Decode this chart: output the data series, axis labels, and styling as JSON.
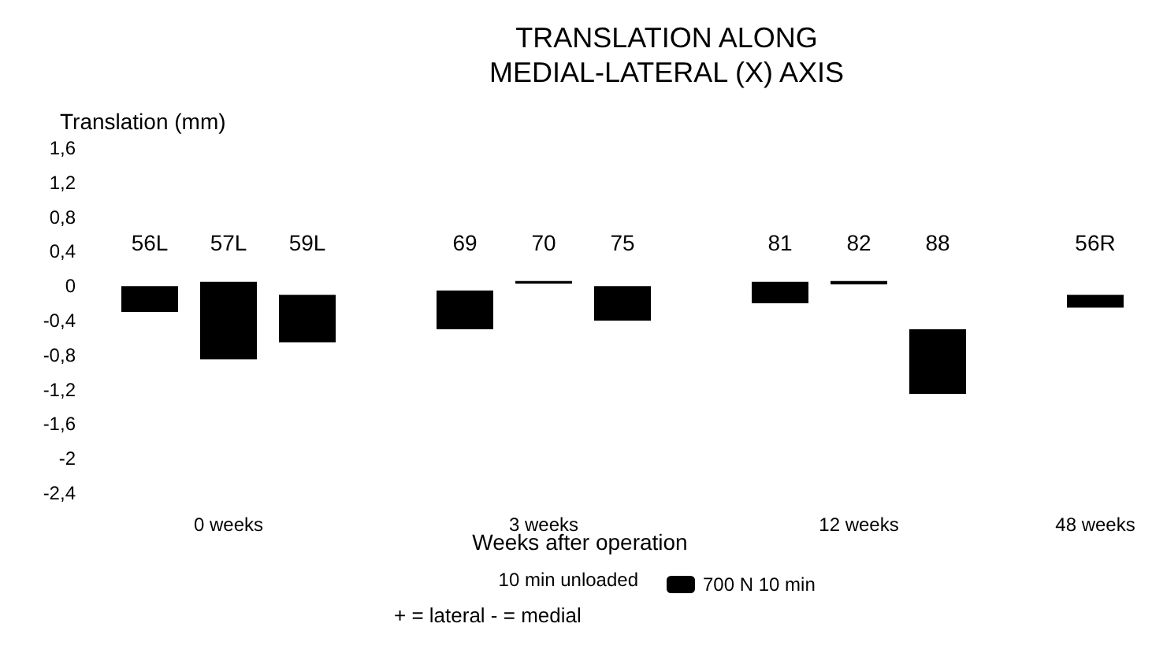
{
  "chart_data": {
    "type": "bar",
    "title": "TRANSLATION ALONG\nMEDIAL-LATERAL (X) AXIS",
    "ylabel": "Translation (mm)",
    "xlabel": "Weeks after operation",
    "categories": [
      "56L",
      "57L",
      "59L",
      null,
      "69",
      "70",
      "75",
      null,
      "81",
      "82",
      "88",
      null,
      "56R"
    ],
    "series": [
      {
        "name": "700 N 10 min",
        "color": "#000000",
        "values": [
          0.3,
          0.9,
          0.55,
          null,
          0.45,
          0.03,
          0.4,
          null,
          0.25,
          0.04,
          0.75,
          null,
          0.15
        ],
        "base": [
          -0.3,
          -0.85,
          -0.65,
          null,
          -0.5,
          0.03,
          -0.4,
          null,
          -0.2,
          0.02,
          -1.25,
          null,
          -0.25
        ]
      }
    ],
    "ylim": [
      -2.4,
      1.6
    ],
    "yticks": [
      {
        "value": 1.6,
        "label": "1,6"
      },
      {
        "value": 1.2,
        "label": "1,2"
      },
      {
        "value": 0.8,
        "label": "0,8"
      },
      {
        "value": 0.4,
        "label": "0,4"
      },
      {
        "value": 0,
        "label": "0"
      },
      {
        "value": -0.4,
        "label": "-0,4"
      },
      {
        "value": -0.8,
        "label": "-0,8"
      },
      {
        "value": -1.2,
        "label": "-1,2"
      },
      {
        "value": -1.6,
        "label": "-1,6"
      },
      {
        "value": -2,
        "label": "-2"
      },
      {
        "value": -2.4,
        "label": "-2,4"
      }
    ],
    "legend": "bottom",
    "annotations": [
      "0 weeks",
      "3 weeks",
      "12 weeks",
      "48 weeks",
      "10 min unloaded",
      "+ = lateral - = medial"
    ]
  }
}
